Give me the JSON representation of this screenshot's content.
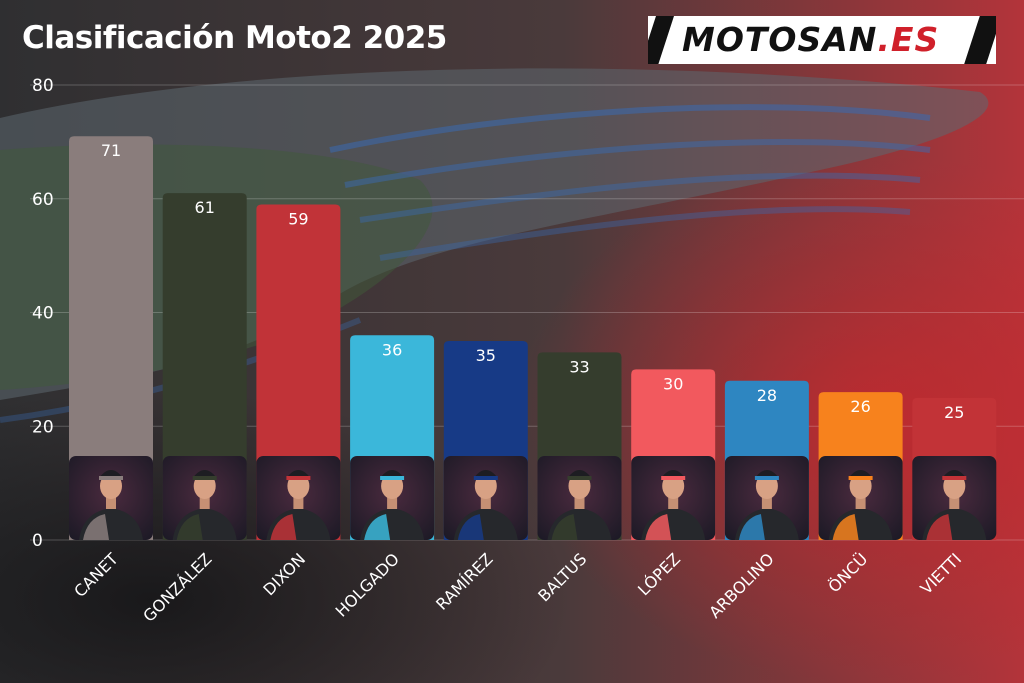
{
  "title": "Clasificación Moto2 2025",
  "logo": {
    "main": "MOTOSAN",
    "accent": ".ES"
  },
  "chart_data": {
    "type": "bar",
    "title": "Clasificación Moto2 2025",
    "categories": [
      "CANET",
      "GONZÁLEZ",
      "DIXON",
      "HOLGADO",
      "RAMÍREZ",
      "BALTUS",
      "LÓPEZ",
      "ARBOLINO",
      "ÖNCÜ",
      "VIETTI"
    ],
    "values": [
      71,
      61,
      59,
      36,
      35,
      33,
      30,
      28,
      26,
      25
    ],
    "bar_colors": [
      "#8a7d7c",
      "#353d2d",
      "#c13338",
      "#3bb7da",
      "#173a86",
      "#353d2d",
      "#f2595e",
      "#2e86c1",
      "#f7821d",
      "#c23337"
    ],
    "ylim": [
      0,
      80
    ],
    "yticks": [
      0,
      20,
      40,
      60,
      80
    ],
    "grid": true,
    "data_labels": true,
    "rider_photos": true
  }
}
